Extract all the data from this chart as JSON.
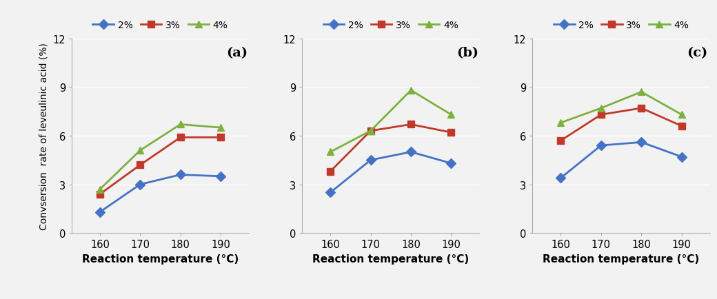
{
  "x": [
    160,
    170,
    180,
    190
  ],
  "panels": [
    {
      "label": "(a)",
      "series": {
        "2%": [
          1.3,
          3.0,
          3.6,
          3.5
        ],
        "3%": [
          2.4,
          4.2,
          5.9,
          5.9
        ],
        "4%": [
          2.7,
          5.1,
          6.7,
          6.5
        ]
      }
    },
    {
      "label": "(b)",
      "series": {
        "2%": [
          2.5,
          4.5,
          5.0,
          4.3
        ],
        "3%": [
          3.8,
          6.3,
          6.7,
          6.2
        ],
        "4%": [
          5.0,
          6.3,
          8.8,
          7.3
        ]
      }
    },
    {
      "label": "(c)",
      "series": {
        "2%": [
          3.4,
          5.4,
          5.6,
          4.7
        ],
        "3%": [
          5.7,
          7.3,
          7.7,
          6.6
        ],
        "4%": [
          6.8,
          7.7,
          8.7,
          7.3
        ]
      }
    }
  ],
  "colors": {
    "2%": "#4472c4",
    "3%": "#c0392b",
    "4%": "#7db13f"
  },
  "markers": {
    "2%": "D",
    "3%": "s",
    "4%": "^"
  },
  "ylim": [
    0,
    12
  ],
  "yticks": [
    0,
    3,
    6,
    9,
    12
  ],
  "xlabel": "Reaction temperature (°C)",
  "ylabel": "Convsersion  rate of leveulinic acid (%)",
  "legend_labels": [
    "2%",
    "3%",
    "4%"
  ],
  "bg_color": "#f2f2f2",
  "grid_color": "#ffffff"
}
